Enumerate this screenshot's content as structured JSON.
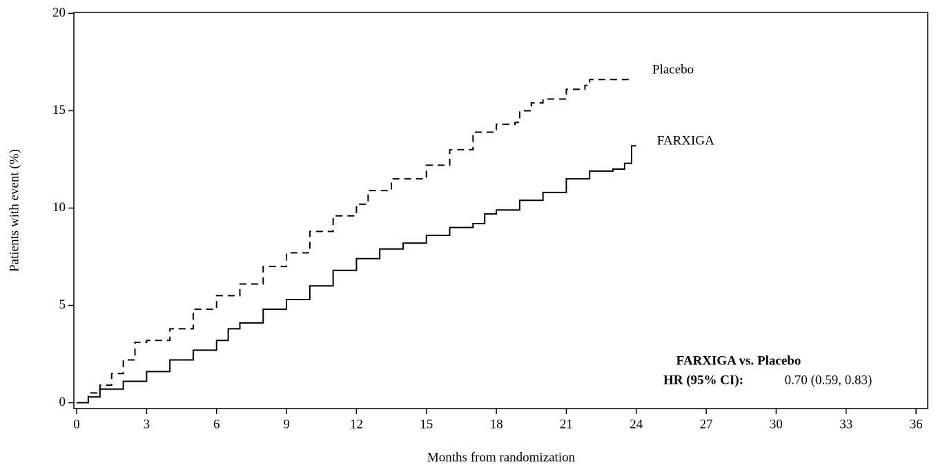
{
  "chart_data": {
    "type": "line",
    "x_label": "Months from randomization",
    "y_label": "Patients with event (%)",
    "xlim": [
      -0.12,
      36.5
    ],
    "ylim": [
      -0.3,
      20.05
    ],
    "xticks": [
      0,
      3,
      6,
      9,
      12,
      15,
      18,
      21,
      24,
      27,
      30,
      33,
      36
    ],
    "yticks": [
      0,
      5,
      10,
      15,
      20
    ],
    "series": [
      {
        "name": "Placebo",
        "color": "#000000",
        "dashed": true,
        "x": [
          0,
          0.5,
          1,
          1.5,
          2,
          2.5,
          3,
          4,
          5,
          6,
          7,
          8,
          9,
          10,
          11,
          12,
          12.5,
          13.5,
          15,
          16,
          17,
          18,
          18.8,
          19,
          19.5,
          20,
          21,
          21.8,
          22,
          23.8
        ],
        "values": [
          0,
          0.5,
          0.9,
          1.5,
          2.2,
          3.1,
          3.2,
          3.8,
          4.8,
          5.5,
          6.1,
          7.0,
          7.7,
          8.8,
          9.6,
          10.2,
          10.9,
          11.5,
          12.2,
          13.0,
          13.9,
          14.3,
          14.4,
          15.0,
          15.4,
          15.6,
          16.1,
          16.3,
          16.6,
          16.6
        ]
      },
      {
        "name": "FARXIGA",
        "color": "#000000",
        "dashed": false,
        "x": [
          0,
          0.5,
          1,
          2,
          3,
          4,
          5,
          6,
          6.5,
          7,
          8,
          9,
          10,
          11,
          12,
          13,
          14,
          15,
          16,
          17,
          17.5,
          18,
          19,
          20,
          21,
          22,
          23,
          23.5,
          23.8,
          24
        ],
        "values": [
          0,
          0.3,
          0.7,
          1.1,
          1.6,
          2.2,
          2.7,
          3.2,
          3.8,
          4.1,
          4.8,
          5.3,
          6.0,
          6.8,
          7.4,
          7.9,
          8.2,
          8.6,
          9.0,
          9.2,
          9.7,
          9.9,
          10.4,
          10.8,
          11.5,
          11.9,
          12.0,
          12.3,
          13.2,
          13.2
        ]
      }
    ],
    "annotations": [
      "FARXIGA vs. Placebo",
      "HR (95% CI):",
      "0.70 (0.59, 0.83)"
    ]
  }
}
